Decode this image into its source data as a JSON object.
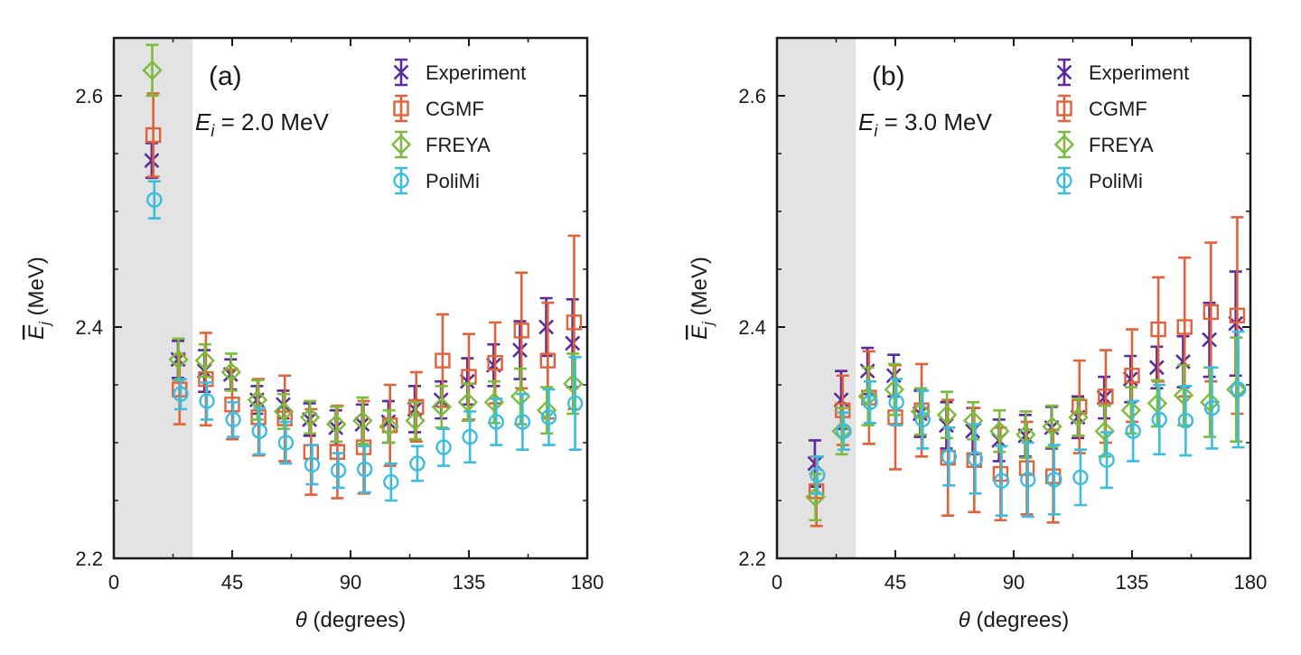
{
  "colors": {
    "Experiment": "#5b2a9e",
    "CGMF": "#e0623a",
    "FREYA": "#7dbb3c",
    "PoliMi": "#3cbde0",
    "shade": "#e3e3e3",
    "axis": "#1a1a1a"
  },
  "markers": {
    "Experiment": "cross",
    "CGMF": "square",
    "FREYA": "diamond",
    "PoliMi": "circle"
  },
  "chart_data": [
    {
      "type": "scatter",
      "panel_label": "(a)",
      "energy_prefix": "E",
      "energy_sub": "i",
      "energy_value": "= 2.0 MeV",
      "xlabel_symbol": "θ",
      "xlabel_unit": "(degrees)",
      "ylabel_symbol": "E",
      "ylabel_sub": "j",
      "ylabel_unit": "(MeV)",
      "xlim": [
        0,
        180
      ],
      "ylim": [
        2.2,
        2.65
      ],
      "xticks": [
        "0",
        "45",
        "90",
        "135",
        "180"
      ],
      "yticks": [
        "2.2",
        "2.4",
        "2.6"
      ],
      "shaded_region": [
        0,
        30
      ],
      "legend_position": "top-right",
      "series": [
        {
          "name": "Experiment",
          "x": [
            15,
            25,
            35,
            45,
            55,
            65,
            75,
            85,
            95,
            105,
            115,
            125,
            135,
            145,
            155,
            165,
            175
          ],
          "y": [
            2.544,
            2.372,
            2.362,
            2.359,
            2.337,
            2.333,
            2.32,
            2.313,
            2.316,
            2.318,
            2.329,
            2.337,
            2.353,
            2.367,
            2.38,
            2.4,
            2.386
          ],
          "err": [
            0.015,
            0.016,
            0.018,
            0.013,
            0.012,
            0.012,
            0.014,
            0.015,
            0.017,
            0.018,
            0.02,
            0.016,
            0.02,
            0.018,
            0.025,
            0.025,
            0.038
          ]
        },
        {
          "name": "CGMF",
          "x": [
            15,
            25,
            35,
            45,
            55,
            65,
            75,
            85,
            95,
            105,
            115,
            125,
            135,
            145,
            155,
            165,
            175
          ],
          "y": [
            2.566,
            2.346,
            2.355,
            2.333,
            2.322,
            2.321,
            2.292,
            2.292,
            2.296,
            2.315,
            2.331,
            2.371,
            2.357,
            2.369,
            2.397,
            2.371,
            2.404
          ],
          "err": [
            0.036,
            0.03,
            0.04,
            0.03,
            0.033,
            0.037,
            0.037,
            0.04,
            0.04,
            0.035,
            0.03,
            0.04,
            0.037,
            0.035,
            0.05,
            0.05,
            0.075
          ]
        },
        {
          "name": "FREYA",
          "x": [
            15,
            25,
            35,
            45,
            55,
            65,
            75,
            85,
            95,
            105,
            115,
            125,
            135,
            145,
            155,
            165,
            175
          ],
          "y": [
            2.622,
            2.372,
            2.371,
            2.361,
            2.337,
            2.327,
            2.322,
            2.316,
            2.319,
            2.314,
            2.319,
            2.331,
            2.335,
            2.335,
            2.34,
            2.328,
            2.351
          ],
          "err": [
            0.022,
            0.018,
            0.014,
            0.016,
            0.017,
            0.015,
            0.014,
            0.015,
            0.02,
            0.014,
            0.016,
            0.018,
            0.016,
            0.018,
            0.024,
            0.02,
            0.026
          ]
        },
        {
          "name": "PoliMi",
          "x": [
            15,
            25,
            35,
            45,
            55,
            65,
            75,
            85,
            95,
            105,
            115,
            125,
            135,
            145,
            155,
            165,
            175
          ],
          "y": [
            2.51,
            2.342,
            2.336,
            2.32,
            2.31,
            2.3,
            2.281,
            2.276,
            2.277,
            2.266,
            2.282,
            2.296,
            2.305,
            2.318,
            2.318,
            2.322,
            2.334
          ],
          "err": [
            0.016,
            0.013,
            0.016,
            0.015,
            0.02,
            0.018,
            0.017,
            0.015,
            0.02,
            0.016,
            0.015,
            0.016,
            0.022,
            0.02,
            0.024,
            0.024,
            0.04
          ]
        }
      ]
    },
    {
      "type": "scatter",
      "panel_label": "(b)",
      "energy_prefix": "E",
      "energy_sub": "i",
      "energy_value": "= 3.0 MeV",
      "xlabel_symbol": "θ",
      "xlabel_unit": "(degrees)",
      "ylabel_symbol": "E",
      "ylabel_sub": "j",
      "ylabel_unit": "(MeV)",
      "xlim": [
        0,
        180
      ],
      "ylim": [
        2.2,
        2.65
      ],
      "xticks": [
        "0",
        "45",
        "90",
        "135",
        "180"
      ],
      "yticks": [
        "2.2",
        "2.4",
        "2.6"
      ],
      "shaded_region": [
        0,
        30
      ],
      "legend_position": "top-right",
      "series": [
        {
          "name": "Experiment",
          "x": [
            15,
            25,
            35,
            45,
            55,
            65,
            75,
            85,
            95,
            105,
            115,
            125,
            135,
            145,
            155,
            165,
            175
          ],
          "y": [
            2.282,
            2.337,
            2.362,
            2.358,
            2.325,
            2.315,
            2.31,
            2.302,
            2.306,
            2.313,
            2.322,
            2.339,
            2.355,
            2.365,
            2.37,
            2.389,
            2.403
          ],
          "err": [
            0.02,
            0.025,
            0.02,
            0.018,
            0.02,
            0.02,
            0.02,
            0.018,
            0.018,
            0.018,
            0.018,
            0.018,
            0.02,
            0.018,
            0.022,
            0.032,
            0.045
          ]
        },
        {
          "name": "CGMF",
          "x": [
            15,
            25,
            35,
            45,
            55,
            65,
            75,
            85,
            95,
            105,
            115,
            125,
            135,
            145,
            155,
            165,
            175
          ],
          "y": [
            2.258,
            2.328,
            2.339,
            2.322,
            2.328,
            2.287,
            2.285,
            2.273,
            2.278,
            2.271,
            2.331,
            2.34,
            2.358,
            2.398,
            2.4,
            2.413,
            2.41
          ],
          "err": [
            0.03,
            0.03,
            0.04,
            0.045,
            0.04,
            0.05,
            0.045,
            0.04,
            0.04,
            0.04,
            0.04,
            0.04,
            0.04,
            0.045,
            0.06,
            0.06,
            0.085
          ]
        },
        {
          "name": "FREYA",
          "x": [
            15,
            25,
            35,
            45,
            55,
            65,
            75,
            85,
            95,
            105,
            115,
            125,
            135,
            145,
            155,
            165,
            175
          ],
          "y": [
            2.253,
            2.31,
            2.34,
            2.346,
            2.327,
            2.324,
            2.319,
            2.31,
            2.307,
            2.314,
            2.322,
            2.31,
            2.328,
            2.334,
            2.341,
            2.335,
            2.346
          ],
          "err": [
            0.02,
            0.02,
            0.025,
            0.022,
            0.02,
            0.02,
            0.016,
            0.018,
            0.02,
            0.018,
            0.016,
            0.022,
            0.02,
            0.02,
            0.026,
            0.03,
            0.045
          ]
        },
        {
          "name": "PoliMi",
          "x": [
            15,
            25,
            35,
            45,
            55,
            65,
            75,
            85,
            95,
            105,
            115,
            125,
            135,
            145,
            155,
            165,
            175
          ],
          "y": [
            2.272,
            2.31,
            2.335,
            2.335,
            2.32,
            2.288,
            2.286,
            2.267,
            2.268,
            2.268,
            2.27,
            2.285,
            2.31,
            2.32,
            2.319,
            2.33,
            2.346
          ],
          "err": [
            0.016,
            0.016,
            0.018,
            0.02,
            0.025,
            0.025,
            0.03,
            0.03,
            0.032,
            0.03,
            0.024,
            0.024,
            0.026,
            0.03,
            0.03,
            0.035,
            0.05
          ]
        }
      ]
    }
  ]
}
